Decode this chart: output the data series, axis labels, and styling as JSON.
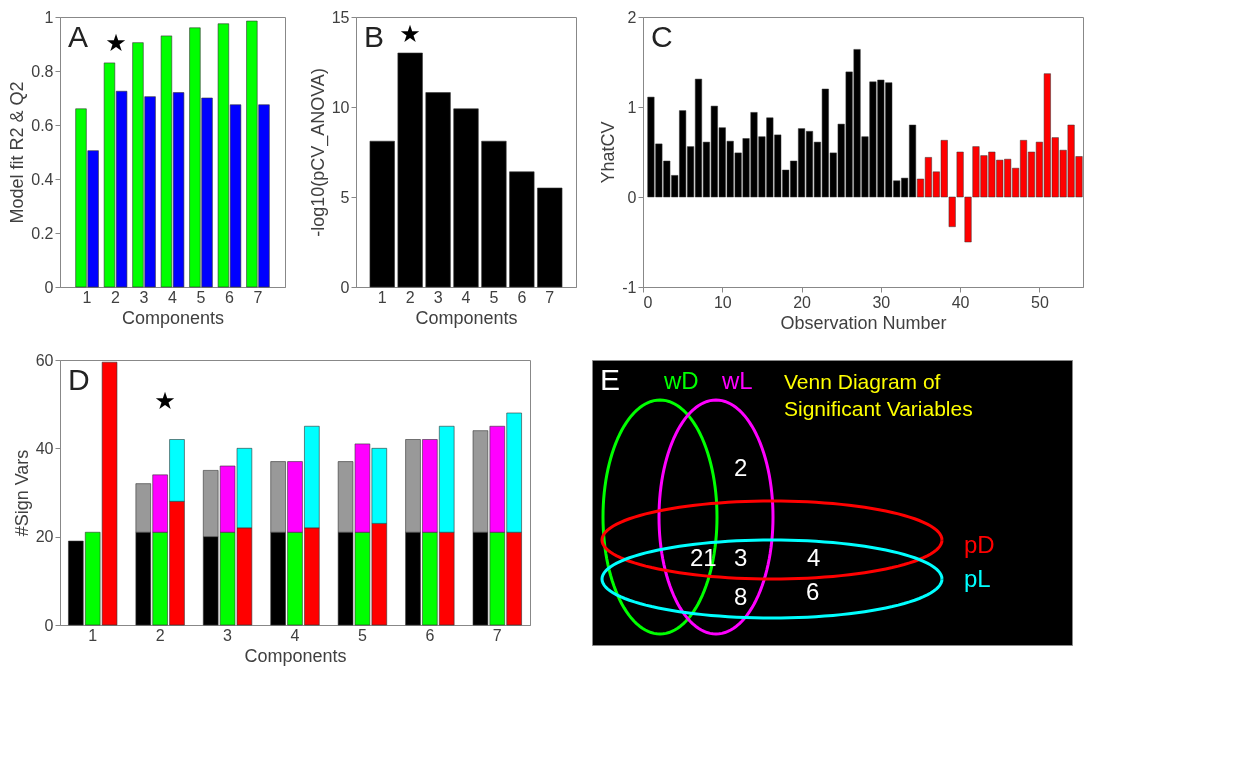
{
  "chart_data": [
    {
      "type": "bar",
      "xlabel": "Components",
      "ylabel": "Model fit R2 & Q2",
      "categories": [
        "1",
        "2",
        "3",
        "4",
        "5",
        "6",
        "7"
      ],
      "series": [
        {
          "color": "#00ff00",
          "values": [
            0.66,
            0.83,
            0.905,
            0.93,
            0.96,
            0.975,
            0.985
          ]
        },
        {
          "color": "#0000ff",
          "values": [
            0.505,
            0.725,
            0.705,
            0.72,
            0.7,
            0.675,
            0.675
          ]
        }
      ],
      "ylim": [
        0,
        1
      ],
      "yticks": [
        0,
        0.2,
        0.4,
        0.6,
        0.8,
        1
      ],
      "annotations": [
        "A",
        "★"
      ]
    },
    {
      "type": "bar",
      "xlabel": "Components",
      "ylabel": "-log10(pCV_ANOVA)",
      "categories": [
        "1",
        "2",
        "3",
        "4",
        "5",
        "6",
        "7"
      ],
      "color": "#000000",
      "values": [
        8.1,
        13.0,
        10.8,
        9.9,
        8.1,
        6.4,
        5.5
      ],
      "ylim": [
        0,
        15
      ],
      "yticks": [
        0,
        5,
        10,
        15
      ],
      "annotations": [
        "B",
        "★"
      ]
    },
    {
      "type": "bar",
      "xlabel": "Observation Number",
      "ylabel": "YhatCV",
      "series": [
        {
          "color": "#000000",
          "x": [
            1,
            2,
            3,
            4,
            5,
            6,
            7,
            8,
            9,
            10,
            11,
            12,
            13,
            14,
            15,
            16,
            17,
            18,
            19,
            20,
            21,
            22,
            23,
            24,
            25,
            26,
            27,
            28,
            29,
            30,
            31,
            32,
            33,
            34
          ],
          "values": [
            1.11,
            0.59,
            0.4,
            0.24,
            0.96,
            0.56,
            1.31,
            0.61,
            1.01,
            0.77,
            0.62,
            0.49,
            0.65,
            0.94,
            0.67,
            0.88,
            0.69,
            0.3,
            0.4,
            0.76,
            0.73,
            0.61,
            1.2,
            0.49,
            0.81,
            1.39,
            1.64,
            0.67,
            1.28,
            1.3,
            1.27,
            0.18,
            0.21,
            0.8
          ]
        },
        {
          "color": "#ff0000",
          "x": [
            35,
            36,
            37,
            38,
            39,
            40,
            41,
            42,
            43,
            44,
            45,
            46,
            47,
            48,
            49,
            50,
            51,
            52,
            53,
            54,
            55
          ],
          "values": [
            0.2,
            0.44,
            0.28,
            0.63,
            -0.33,
            0.5,
            -0.5,
            0.56,
            0.46,
            0.5,
            0.41,
            0.42,
            0.32,
            0.63,
            0.5,
            0.61,
            1.37,
            0.66,
            0.52,
            0.8,
            0.45
          ]
        }
      ],
      "xlim": [
        0,
        55.5
      ],
      "xticks": [
        0,
        10,
        20,
        30,
        40,
        50
      ],
      "ylim": [
        -1,
        2
      ],
      "yticks": [
        -1,
        0,
        1,
        2
      ],
      "annotations": [
        "C"
      ]
    },
    {
      "type": "bar",
      "stacked": true,
      "xlabel": "Components",
      "ylabel": "#Sign Vars",
      "categories": [
        null,
        "1",
        null,
        null,
        null,
        "2",
        null,
        null,
        null,
        "3",
        null,
        null,
        null,
        "4",
        null,
        null,
        null,
        "5",
        null,
        null,
        null,
        "6",
        null,
        null,
        null,
        "7",
        null
      ],
      "series": [
        {
          "colors": [
            "#000000",
            "#00ff00",
            "#ff0000",
            null,
            "#000000",
            "#00ff00",
            "#ff0000",
            null,
            "#000000",
            "#00ff00",
            "#ff0000",
            null,
            "#000000",
            "#00ff00",
            "#ff0000",
            null,
            "#000000",
            "#00ff00",
            "#ff0000",
            null,
            "#000000",
            "#00ff00",
            "#ff0000",
            null,
            "#000000",
            "#00ff00",
            "#ff0000"
          ],
          "values": [
            19,
            21,
            59.5,
            null,
            21,
            21,
            28,
            null,
            20,
            21,
            22,
            null,
            21,
            21,
            22,
            null,
            21,
            21,
            23,
            null,
            21,
            21,
            21,
            null,
            21,
            21,
            21
          ]
        },
        {
          "colors": [
            null,
            null,
            null,
            null,
            "#999999",
            "#ff00ff",
            "#00ffff",
            null,
            "#999999",
            "#ff00ff",
            "#00ffff",
            null,
            "#999999",
            "#ff00ff",
            "#00ffff",
            null,
            "#999999",
            "#ff00ff",
            "#00ffff",
            null,
            "#999999",
            "#ff00ff",
            "#00ffff",
            null,
            "#999999",
            "#ff00ff",
            "#00ffff"
          ],
          "values": [
            null,
            null,
            null,
            null,
            11,
            13,
            14,
            null,
            15,
            15,
            18,
            null,
            16,
            16,
            23,
            null,
            16,
            20,
            17,
            null,
            21,
            21,
            24,
            null,
            23,
            24,
            27
          ]
        }
      ],
      "ylim": [
        0,
        60
      ],
      "yticks": [
        0,
        20,
        40,
        60
      ],
      "annotations": [
        "D",
        "★"
      ]
    },
    {
      "type": "other",
      "title": "Venn Diagram of Significant Variables",
      "annotations": [
        "E",
        "wD",
        "wL",
        "pD",
        "pL",
        "2",
        "21",
        "3",
        "4",
        "8",
        "6"
      ]
    }
  ]
}
